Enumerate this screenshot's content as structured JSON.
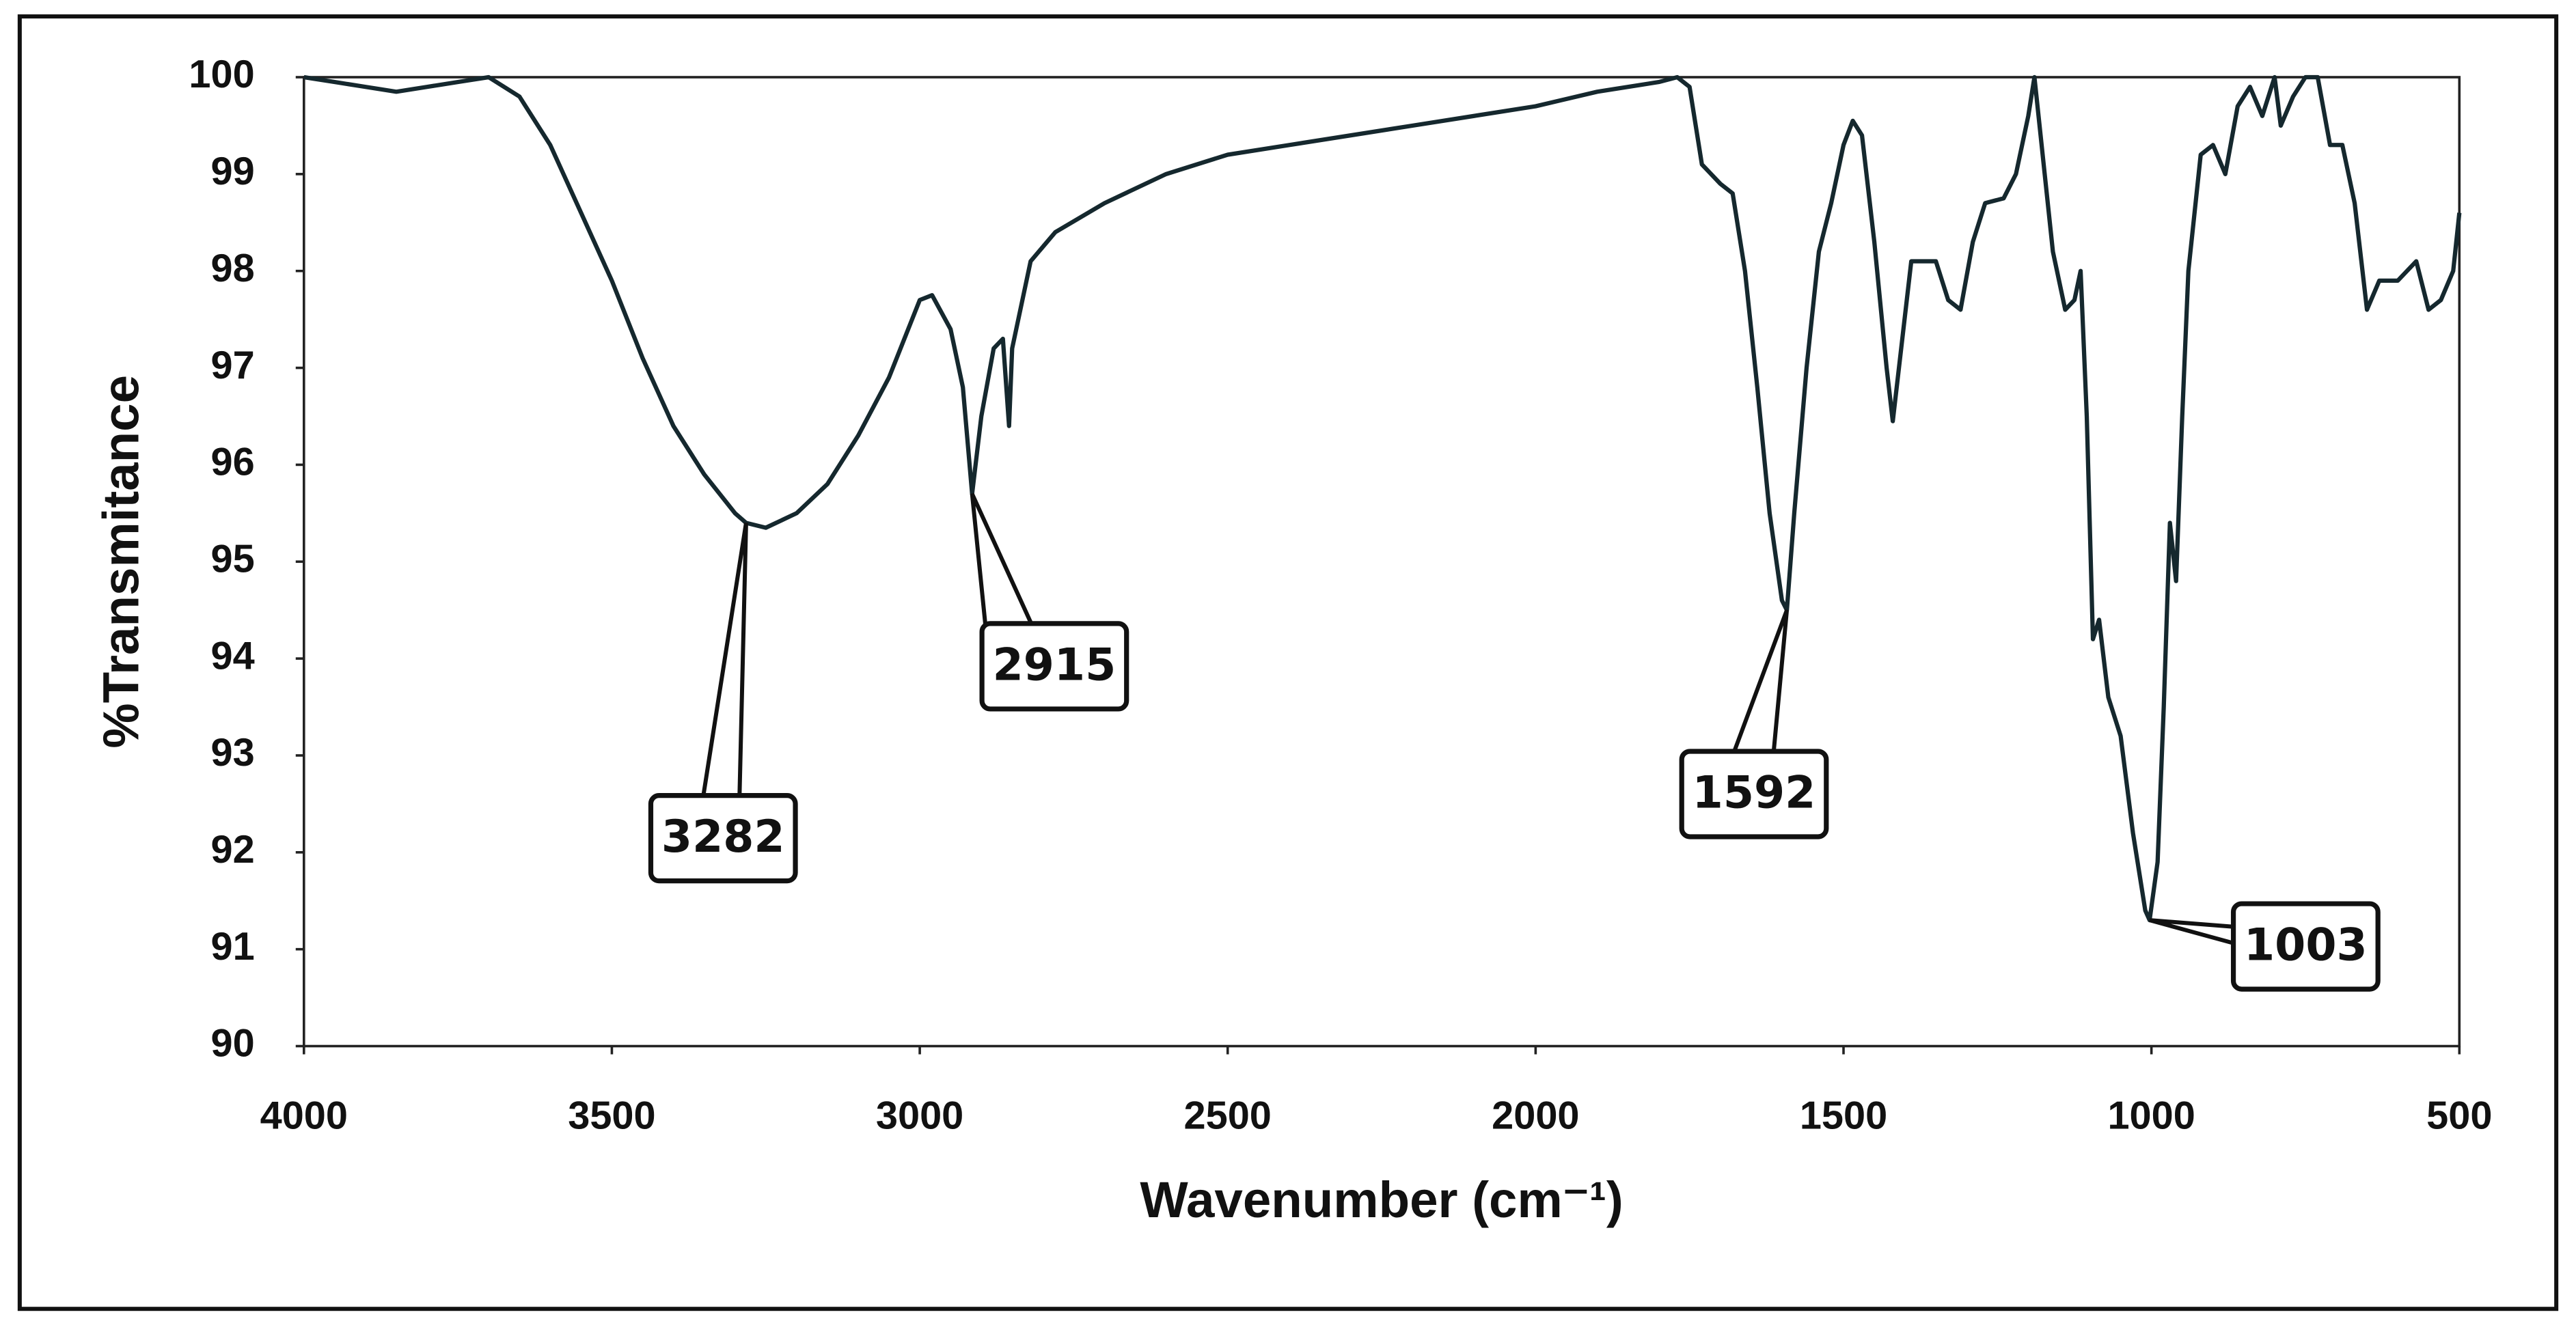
{
  "chart_data": {
    "type": "line",
    "x_label": "Wavenumber (cm⁻¹)",
    "y_label": "%Transmitance",
    "xlim": [
      4000,
      500
    ],
    "ylim": [
      90,
      100
    ],
    "xticks": [
      4000,
      3500,
      3000,
      2500,
      2000,
      1500,
      1000,
      500
    ],
    "yticks": [
      90,
      91,
      92,
      93,
      94,
      95,
      96,
      97,
      98,
      99,
      100
    ],
    "series": [
      {
        "color": "#15282e",
        "x": [
          4000,
          3950,
          3900,
          3850,
          3800,
          3750,
          3700,
          3650,
          3600,
          3550,
          3500,
          3450,
          3400,
          3350,
          3300,
          3282,
          3250,
          3200,
          3150,
          3100,
          3050,
          3000,
          2980,
          2950,
          2930,
          2915,
          2900,
          2880,
          2865,
          2855,
          2850,
          2820,
          2780,
          2700,
          2600,
          2500,
          2400,
          2300,
          2200,
          2100,
          2000,
          1900,
          1800,
          1770,
          1750,
          1730,
          1700,
          1680,
          1660,
          1640,
          1620,
          1600,
          1592,
          1580,
          1560,
          1540,
          1520,
          1500,
          1485,
          1470,
          1450,
          1430,
          1420,
          1410,
          1390,
          1350,
          1330,
          1310,
          1290,
          1270,
          1240,
          1220,
          1200,
          1190,
          1180,
          1160,
          1140,
          1125,
          1115,
          1105,
          1095,
          1085,
          1070,
          1050,
          1030,
          1010,
          1003,
          990,
          980,
          970,
          960,
          950,
          940,
          920,
          900,
          880,
          860,
          840,
          820,
          800,
          790,
          770,
          750,
          730,
          710,
          690,
          670,
          650,
          630,
          600,
          570,
          550,
          530,
          510,
          500
        ],
        "values": [
          100,
          99.95,
          99.9,
          99.85,
          99.9,
          99.95,
          100,
          99.8,
          99.3,
          98.6,
          97.9,
          97.1,
          96.4,
          95.9,
          95.5,
          95.4,
          95.35,
          95.5,
          95.8,
          96.3,
          96.9,
          97.7,
          97.75,
          97.4,
          96.8,
          95.7,
          96.5,
          97.2,
          97.3,
          96.4,
          97.2,
          98.1,
          98.4,
          98.7,
          99.0,
          99.2,
          99.3,
          99.4,
          99.5,
          99.6,
          99.7,
          99.85,
          99.95,
          100,
          99.9,
          99.1,
          98.9,
          98.8,
          98.0,
          96.8,
          95.5,
          94.6,
          94.5,
          95.5,
          97.0,
          98.2,
          98.7,
          99.3,
          99.55,
          99.4,
          98.3,
          97.0,
          96.45,
          97.0,
          98.1,
          98.1,
          97.7,
          97.6,
          98.3,
          98.7,
          98.75,
          99.0,
          99.6,
          100,
          99.4,
          98.2,
          97.6,
          97.7,
          98.0,
          96.5,
          94.2,
          94.4,
          93.6,
          93.2,
          92.2,
          91.4,
          91.3,
          91.9,
          93.5,
          95.4,
          94.8,
          96.5,
          98.0,
          99.2,
          99.3,
          99.0,
          99.7,
          99.9,
          99.6,
          100,
          99.5,
          99.8,
          100,
          100,
          99.3,
          99.3,
          98.7,
          97.6,
          97.9,
          97.9,
          98.1,
          97.6,
          97.7,
          98.0,
          98.6
        ]
      }
    ],
    "annotations": [
      "3282",
      "2915",
      "1592",
      "1003"
    ]
  }
}
